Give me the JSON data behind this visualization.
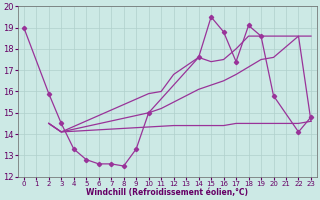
{
  "xlabel": "Windchill (Refroidissement éolien,°C)",
  "xlim": [
    -0.5,
    23.5
  ],
  "ylim": [
    12,
    20
  ],
  "yticks": [
    12,
    13,
    14,
    15,
    16,
    17,
    18,
    19,
    20
  ],
  "xticks": [
    0,
    1,
    2,
    3,
    4,
    5,
    6,
    7,
    8,
    9,
    10,
    11,
    12,
    13,
    14,
    15,
    16,
    17,
    18,
    19,
    20,
    21,
    22,
    23
  ],
  "bg_color": "#cce9e5",
  "grid_color": "#b0d0cc",
  "line_color": "#993399",
  "line1": {
    "x": [
      0,
      2,
      3,
      4,
      5,
      6,
      7,
      8,
      9,
      10,
      14,
      15,
      16,
      17,
      18,
      19,
      20,
      22,
      23
    ],
    "y": [
      19.0,
      15.9,
      14.5,
      13.3,
      12.8,
      12.6,
      12.6,
      12.5,
      13.3,
      15.0,
      17.6,
      19.5,
      18.8,
      17.4,
      19.1,
      18.6,
      15.8,
      14.1,
      14.8
    ]
  },
  "line2": {
    "x": [
      2,
      3,
      10,
      11,
      12,
      13,
      14,
      15,
      16,
      17,
      18,
      19,
      23
    ],
    "y": [
      14.5,
      14.1,
      15.9,
      16.0,
      16.8,
      17.2,
      17.6,
      17.4,
      17.5,
      18.0,
      18.6,
      18.6,
      18.6
    ]
  },
  "line3": {
    "x": [
      2,
      3,
      12,
      13,
      14,
      15,
      16,
      17,
      18,
      19,
      20,
      21,
      22,
      23
    ],
    "y": [
      14.5,
      14.1,
      14.4,
      14.4,
      14.4,
      14.4,
      14.4,
      14.5,
      14.5,
      14.5,
      14.5,
      14.5,
      14.5,
      14.6
    ]
  },
  "line4": {
    "x": [
      2,
      3,
      10,
      11,
      12,
      13,
      14,
      15,
      16,
      17,
      19,
      20,
      22,
      23
    ],
    "y": [
      14.5,
      14.1,
      15.0,
      15.2,
      15.5,
      15.8,
      16.1,
      16.3,
      16.5,
      16.8,
      17.5,
      17.6,
      18.6,
      14.6
    ]
  }
}
